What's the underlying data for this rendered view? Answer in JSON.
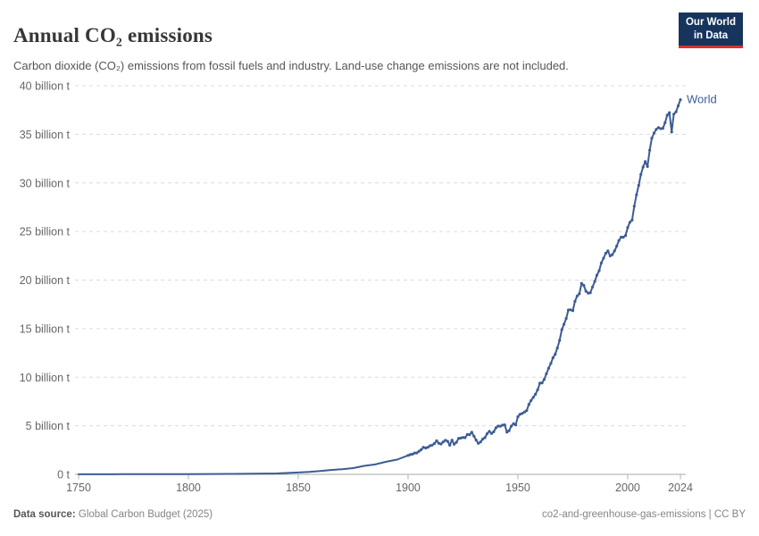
{
  "header": {
    "title": "Annual CO₂ emissions",
    "subtitle": "Carbon dioxide (CO₂) emissions from fossil fuels and industry. Land-use change emissions are not included.",
    "logo": {
      "line1": "Our World",
      "line2": "in Data",
      "bg_color": "#17355c",
      "accent_color": "#d1342c"
    }
  },
  "footer": {
    "datasource_label": "Data source:",
    "datasource_value": "Global Carbon Budget (2025)",
    "right_text": "co2-and-greenhouse-gas-emissions | CC BY"
  },
  "chart_data": {
    "type": "line",
    "title": "Annual CO₂ emissions",
    "series_label": "World",
    "line_color": "#3d5c94",
    "grid": true,
    "legend_position": "end-of-line",
    "xlim": [
      1750,
      2024
    ],
    "ylim": [
      0,
      40
    ],
    "x_ticks": [
      1750,
      1800,
      1850,
      1900,
      1950,
      2000,
      2024
    ],
    "y_ticks": [
      0,
      5,
      10,
      15,
      20,
      25,
      30,
      35,
      40
    ],
    "y_tick_labels": [
      "0 t",
      "5 billion t",
      "10 billion t",
      "15 billion t",
      "20 billion t",
      "25 billion t",
      "30 billion t",
      "35 billion t",
      "40 billion t"
    ],
    "unit": "billion t",
    "points": [
      [
        1750,
        0.01
      ],
      [
        1760,
        0.011
      ],
      [
        1770,
        0.014
      ],
      [
        1780,
        0.017
      ],
      [
        1790,
        0.022
      ],
      [
        1800,
        0.03
      ],
      [
        1810,
        0.037
      ],
      [
        1820,
        0.049
      ],
      [
        1830,
        0.068
      ],
      [
        1840,
        0.096
      ],
      [
        1850,
        0.197
      ],
      [
        1855,
        0.25
      ],
      [
        1860,
        0.34
      ],
      [
        1865,
        0.45
      ],
      [
        1870,
        0.53
      ],
      [
        1875,
        0.64
      ],
      [
        1880,
        0.87
      ],
      [
        1885,
        1.02
      ],
      [
        1890,
        1.3
      ],
      [
        1895,
        1.52
      ],
      [
        1900,
        1.95
      ],
      [
        1901,
        2.03
      ],
      [
        1902,
        2.08
      ],
      [
        1903,
        2.2
      ],
      [
        1904,
        2.21
      ],
      [
        1905,
        2.38
      ],
      [
        1906,
        2.54
      ],
      [
        1907,
        2.79
      ],
      [
        1908,
        2.71
      ],
      [
        1909,
        2.79
      ],
      [
        1910,
        2.94
      ],
      [
        1911,
        3.01
      ],
      [
        1912,
        3.17
      ],
      [
        1913,
        3.46
      ],
      [
        1914,
        3.2
      ],
      [
        1915,
        3.13
      ],
      [
        1916,
        3.34
      ],
      [
        1917,
        3.5
      ],
      [
        1918,
        3.4
      ],
      [
        1919,
        3.0
      ],
      [
        1920,
        3.52
      ],
      [
        1921,
        3.1
      ],
      [
        1922,
        3.3
      ],
      [
        1923,
        3.71
      ],
      [
        1924,
        3.73
      ],
      [
        1925,
        3.8
      ],
      [
        1926,
        3.78
      ],
      [
        1927,
        4.11
      ],
      [
        1928,
        4.08
      ],
      [
        1929,
        4.33
      ],
      [
        1930,
        3.94
      ],
      [
        1931,
        3.53
      ],
      [
        1932,
        3.19
      ],
      [
        1933,
        3.34
      ],
      [
        1934,
        3.63
      ],
      [
        1935,
        3.78
      ],
      [
        1936,
        4.18
      ],
      [
        1937,
        4.43
      ],
      [
        1938,
        4.21
      ],
      [
        1939,
        4.39
      ],
      [
        1940,
        4.79
      ],
      [
        1941,
        4.97
      ],
      [
        1942,
        4.96
      ],
      [
        1943,
        5.07
      ],
      [
        1944,
        5.09
      ],
      [
        1945,
        4.35
      ],
      [
        1946,
        4.5
      ],
      [
        1947,
        4.97
      ],
      [
        1948,
        5.22
      ],
      [
        1949,
        5.09
      ],
      [
        1950,
        5.93
      ],
      [
        1951,
        6.19
      ],
      [
        1952,
        6.27
      ],
      [
        1953,
        6.42
      ],
      [
        1954,
        6.57
      ],
      [
        1955,
        7.2
      ],
      [
        1956,
        7.6
      ],
      [
        1957,
        7.93
      ],
      [
        1958,
        8.24
      ],
      [
        1959,
        8.7
      ],
      [
        1960,
        9.39
      ],
      [
        1961,
        9.41
      ],
      [
        1962,
        9.78
      ],
      [
        1963,
        10.35
      ],
      [
        1964,
        10.92
      ],
      [
        1965,
        11.43
      ],
      [
        1966,
        12.0
      ],
      [
        1967,
        12.37
      ],
      [
        1968,
        13.01
      ],
      [
        1969,
        13.79
      ],
      [
        1970,
        14.9
      ],
      [
        1971,
        15.45
      ],
      [
        1972,
        16.05
      ],
      [
        1973,
        16.92
      ],
      [
        1974,
        16.94
      ],
      [
        1975,
        16.85
      ],
      [
        1976,
        17.81
      ],
      [
        1977,
        18.36
      ],
      [
        1978,
        18.58
      ],
      [
        1979,
        19.66
      ],
      [
        1980,
        19.45
      ],
      [
        1981,
        18.85
      ],
      [
        1982,
        18.66
      ],
      [
        1983,
        18.69
      ],
      [
        1984,
        19.29
      ],
      [
        1985,
        19.86
      ],
      [
        1986,
        20.51
      ],
      [
        1987,
        20.97
      ],
      [
        1988,
        21.77
      ],
      [
        1989,
        22.25
      ],
      [
        1990,
        22.76
      ],
      [
        1991,
        23.0
      ],
      [
        1992,
        22.49
      ],
      [
        1993,
        22.61
      ],
      [
        1994,
        23.0
      ],
      [
        1995,
        23.5
      ],
      [
        1996,
        24.07
      ],
      [
        1997,
        24.41
      ],
      [
        1998,
        24.41
      ],
      [
        1999,
        24.58
      ],
      [
        2000,
        25.42
      ],
      [
        2001,
        25.95
      ],
      [
        2002,
        26.17
      ],
      [
        2003,
        27.6
      ],
      [
        2004,
        28.77
      ],
      [
        2005,
        29.76
      ],
      [
        2006,
        30.87
      ],
      [
        2007,
        31.63
      ],
      [
        2008,
        32.19
      ],
      [
        2009,
        31.69
      ],
      [
        2010,
        33.37
      ],
      [
        2011,
        34.61
      ],
      [
        2012,
        35.14
      ],
      [
        2013,
        35.51
      ],
      [
        2014,
        35.7
      ],
      [
        2015,
        35.59
      ],
      [
        2016,
        35.61
      ],
      [
        2017,
        36.19
      ],
      [
        2018,
        36.97
      ],
      [
        2019,
        37.23
      ],
      [
        2020,
        35.25
      ],
      [
        2021,
        37.08
      ],
      [
        2022,
        37.32
      ],
      [
        2023,
        37.93
      ],
      [
        2024,
        38.57
      ]
    ]
  }
}
